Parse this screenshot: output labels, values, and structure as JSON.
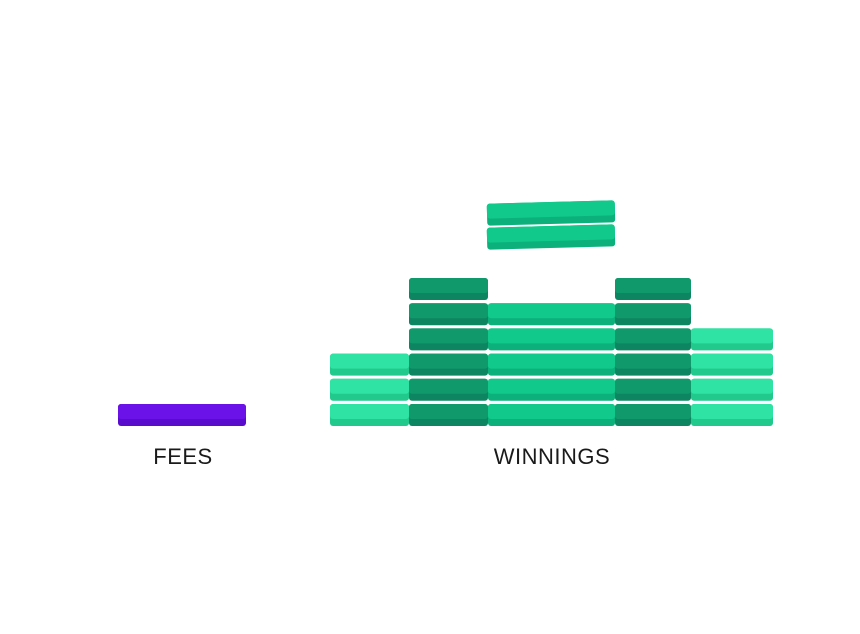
{
  "labels": {
    "fees": "FEES",
    "winnings": "WINNINGS"
  },
  "colors": {
    "fees_top": "#6a12e8",
    "fees_edge": "#5a0ccc",
    "teal_light_top": "#2ee3a3",
    "teal_light_edge": "#21c98c",
    "teal_mid_top": "#10c98a",
    "teal_mid_edge": "#0cb07a",
    "teal_dark_top": "#109a6c",
    "teal_dark_edge": "#0d8560"
  },
  "stacks": {
    "fees_count": 1,
    "winnings_columns": [
      3,
      6,
      5,
      6,
      4
    ],
    "winnings_loose_chips": 2
  }
}
